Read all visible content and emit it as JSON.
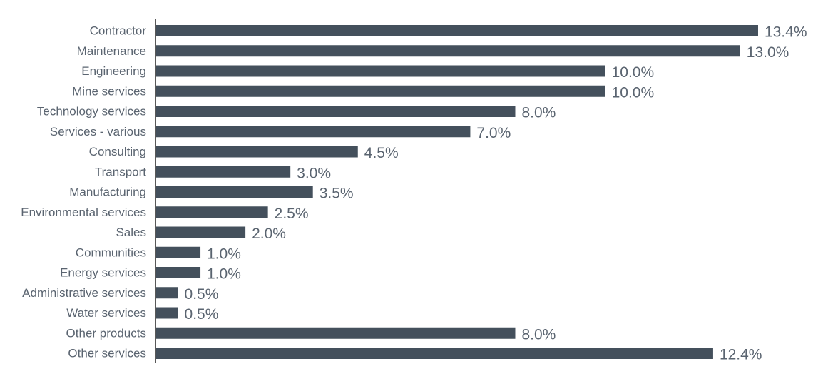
{
  "chart_data": {
    "type": "bar",
    "orientation": "horizontal",
    "title": "",
    "xlabel": "",
    "ylabel": "",
    "categories": [
      "Contractor",
      "Maintenance",
      "Engineering",
      "Mine services",
      "Technology services",
      "Services - various",
      "Consulting",
      "Transport",
      "Manufacturing",
      "Environmental services",
      "Sales",
      "Communities",
      "Energy services",
      "Administrative services",
      "Water services",
      "Other products",
      "Other services"
    ],
    "values": [
      13.4,
      13.0,
      10.0,
      10.0,
      8.0,
      7.0,
      4.5,
      3.0,
      3.5,
      2.5,
      2.0,
      1.0,
      1.0,
      0.5,
      0.5,
      8.0,
      12.4
    ],
    "value_labels": [
      "13.4%",
      "13.0%",
      "10.0%",
      "10.0%",
      "8.0%",
      "7.0%",
      "4.5%",
      "3.0%",
      "3.5%",
      "2.5%",
      "2.0%",
      "1.0%",
      "1.0%",
      "0.5%",
      "0.5%",
      "8.0%",
      "12.4%"
    ],
    "xlim": [
      0,
      13.4
    ],
    "grid": false,
    "legend": "none",
    "colors": {
      "bar": "#44505c",
      "axis": "#222222",
      "category_text": "#5a6470",
      "value_text": "#5a6470"
    }
  }
}
